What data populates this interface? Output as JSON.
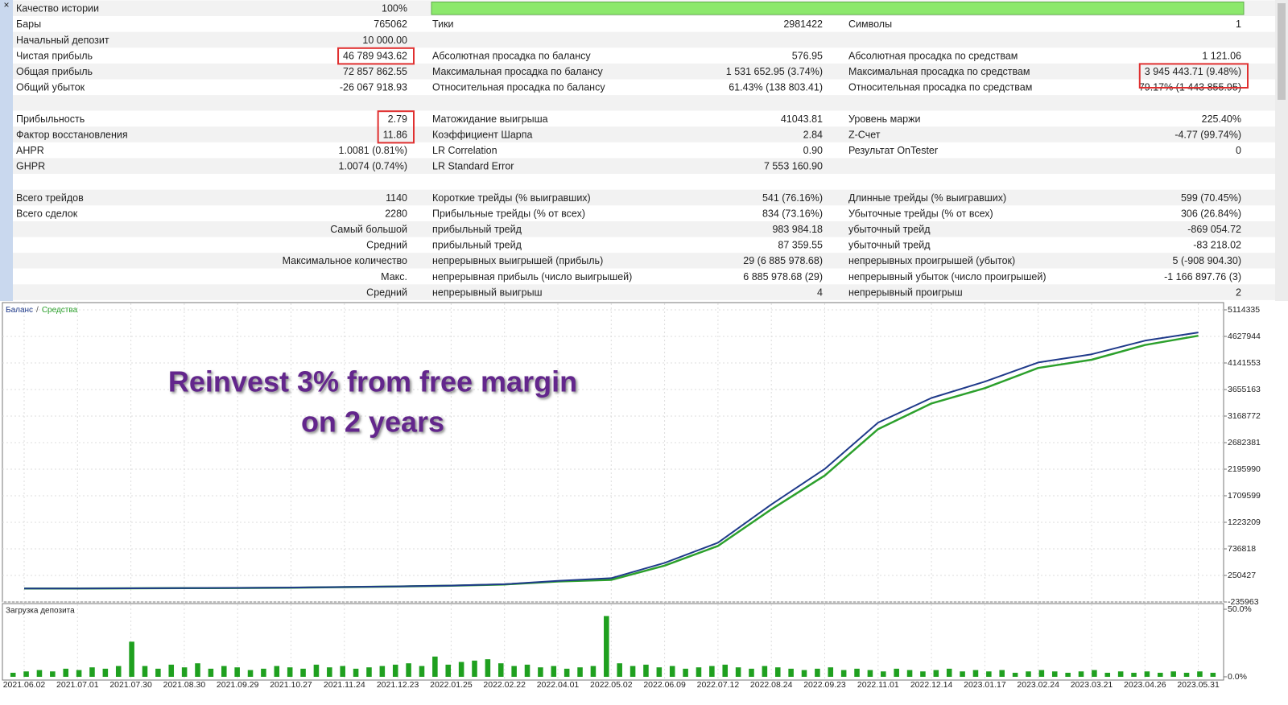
{
  "table": {
    "rows": [
      [
        "Качество истории",
        "100%",
        null,
        null,
        null,
        null
      ],
      [
        "Бары",
        "765062",
        "Тики",
        "2981422",
        "Символы",
        "1"
      ],
      [
        "Начальный депозит",
        "10 000.00",
        null,
        null,
        null,
        null
      ],
      [
        "Чистая прибыль",
        "46 789 943.62",
        "Абсолютная просадка по балансу",
        "576.95",
        "Абсолютная просадка по средствам",
        "1 121.06"
      ],
      [
        "Общая прибыль",
        "72 857 862.55",
        "Максимальная просадка по балансу",
        "1 531 652.95 (3.74%)",
        "Максимальная просадка по средствам",
        "3 945 443.71 (9.48%)"
      ],
      [
        "Общий убыток",
        "-26 067 918.93",
        "Относительная просадка по балансу",
        "61.43% (138 803.41)",
        "Относительная просадка по средствам",
        "79.17% (1 443 855.95)"
      ],
      [],
      [
        "Прибыльность",
        "2.79",
        "Матожидание выигрыша",
        "41043.81",
        "Уровень маржи",
        "225.40%"
      ],
      [
        "Фактор восстановления",
        "11.86",
        "Коэффициент Шарпа",
        "2.84",
        "Z-Счет",
        "-4.77 (99.74%)"
      ],
      [
        "AHPR",
        "1.0081 (0.81%)",
        "LR Correlation",
        "0.90",
        "Результат OnTester",
        "0"
      ],
      [
        "GHPR",
        "1.0074 (0.74%)",
        "LR Standard Error",
        "7 553 160.90",
        null,
        null
      ],
      [],
      [
        "Всего трейдов",
        "1140",
        "Короткие трейды (% выигравших)",
        "541 (76.16%)",
        "Длинные трейды (% выигравших)",
        "599 (70.45%)"
      ],
      [
        "Всего сделок",
        "2280",
        "Прибыльные трейды (% от всех)",
        "834 (73.16%)",
        "Убыточные трейды (% от всех)",
        "306 (26.84%)"
      ],
      [
        "Самый большой",
        null,
        "прибыльный трейд",
        "983 984.18",
        "убыточный трейд",
        "-869 054.72"
      ],
      [
        "Средний",
        null,
        "прибыльный трейд",
        "87 359.55",
        "убыточный трейд",
        "-83 218.02"
      ],
      [
        "Максимальное количество",
        null,
        "непрерывных выигрышей (прибыль)",
        "29 (6 885 978.68)",
        "непрерывных проигрышей (убыток)",
        "5 (-908 904.30)"
      ],
      [
        "Макс.",
        null,
        "непрерывная прибыль (число выигрышей)",
        "6 885 978.68 (29)",
        "непрерывный убыток (число проигрышей)",
        "-1 166 897.76 (3)"
      ],
      [
        "Средний",
        null,
        "непрерывный выигрыш",
        "4",
        "непрерывный проигрыш",
        "2"
      ]
    ],
    "highlights": [
      [
        3,
        3,
        1
      ],
      [
        4,
        4,
        5
      ],
      [
        7,
        8,
        1
      ]
    ]
  },
  "chart_data": [
    {
      "type": "line",
      "legend": [
        "Баланс",
        "/",
        "Средства"
      ],
      "annotations": [
        "Reinvest 3% from free margin",
        "on 2 years"
      ],
      "categories": [
        "2021.06.02",
        "2021.07.01",
        "2021.07.30",
        "2021.08.30",
        "2021.09.29",
        "2021.10.27",
        "2021.11.24",
        "2021.12.23",
        "2022.01.25",
        "2022.02.22",
        "2022.04.01",
        "2022.05.02",
        "2022.06.09",
        "2022.07.12",
        "2022.08.24",
        "2022.09.23",
        "2022.11.01",
        "2022.12.14",
        "2023.01.17",
        "2023.02.24",
        "2023.03.21",
        "2023.04.26",
        "2023.05.31"
      ],
      "series": [
        {
          "name": "Средства",
          "color": "#2ca02c",
          "values": [
            10000,
            11500,
            14500,
            17500,
            21000,
            27000,
            36000,
            48000,
            62000,
            85000,
            140000,
            170000,
            430000,
            790000,
            1460000,
            2080000,
            2930000,
            3400000,
            3680000,
            4050000,
            4200000,
            4470000,
            4640000
          ]
        },
        {
          "name": "Баланс",
          "color": "#1f3a8a",
          "values": [
            10000,
            12000,
            15000,
            18000,
            22000,
            28000,
            38000,
            50000,
            65000,
            90000,
            150000,
            200000,
            480000,
            850000,
            1550000,
            2200000,
            3050000,
            3500000,
            3800000,
            4150000,
            4300000,
            4550000,
            4700000
          ]
        }
      ],
      "ylim": [
        -235963,
        5232247
      ],
      "yticks": [
        5114335,
        4627944,
        4141553,
        3655163,
        3168772,
        2682381,
        2195990,
        1709599,
        1223209,
        736818,
        250427,
        -235963
      ],
      "grid": true
    },
    {
      "type": "bar",
      "title": "Загрузка депозита",
      "color": "#1fa01f",
      "values": [
        3,
        4,
        5,
        4,
        6,
        5,
        7,
        6,
        8,
        26,
        8,
        6,
        9,
        7,
        10,
        6,
        8,
        7,
        5,
        6,
        8,
        7,
        6,
        9,
        7,
        8,
        6,
        7,
        8,
        9,
        10,
        8,
        15,
        9,
        11,
        12,
        13,
        10,
        8,
        9,
        7,
        8,
        6,
        7,
        8,
        45,
        10,
        8,
        9,
        7,
        8,
        6,
        7,
        8,
        9,
        7,
        6,
        8,
        7,
        6,
        5,
        6,
        7,
        5,
        6,
        5,
        4,
        6,
        5,
        4,
        5,
        6,
        4,
        5,
        4,
        5,
        3,
        4,
        5,
        4,
        3,
        4,
        5,
        3,
        4,
        3,
        4,
        3,
        4,
        3,
        4,
        3
      ],
      "ylim": [
        -2.4,
        53.6
      ],
      "yticks": [
        {
          "value": 50,
          "label": "50.0%"
        },
        {
          "value": 0,
          "label": "0.0%"
        }
      ]
    }
  ]
}
